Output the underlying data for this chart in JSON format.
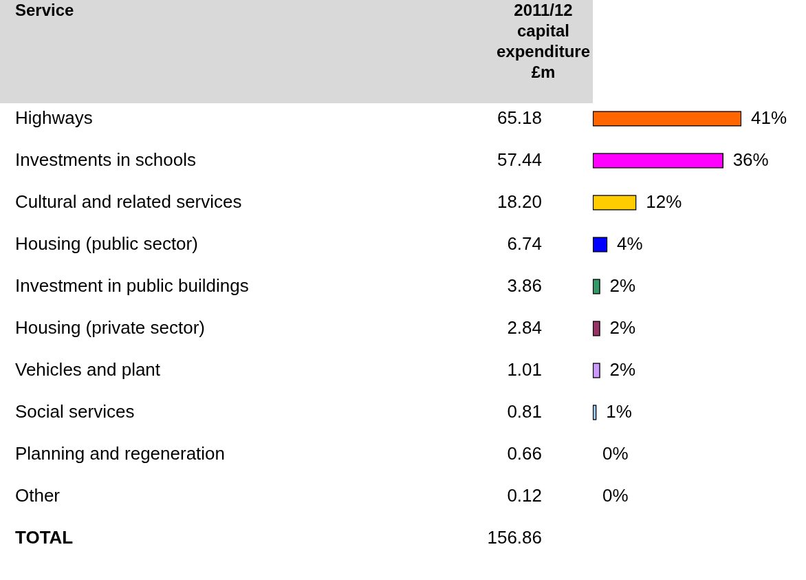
{
  "chart_data": {
    "type": "bar",
    "orientation": "horizontal",
    "ylabel": "Service",
    "categories": [
      "Highways",
      "Investments in schools",
      "Cultural and related services",
      "Housing (public sector)",
      "Investment in public buildings",
      "Housing (private sector)",
      "Vehicles and plant",
      "Social services",
      "Planning and regeneration",
      "Other"
    ],
    "values": [
      41,
      36,
      12,
      4,
      2,
      2,
      2,
      1,
      0,
      0
    ],
    "colors": [
      "#ff6600",
      "#ff00ff",
      "#ffcc00",
      "#0000ff",
      "#339966",
      "#993366",
      "#cc99ff",
      "#99ccff",
      "#ffffff",
      "#ffffff"
    ],
    "value_labels": [
      "41%",
      "36%",
      "12%",
      "4%",
      "2%",
      "2%",
      "2%",
      "1%",
      "0%",
      "0%"
    ],
    "xlim": [
      0,
      41
    ],
    "tick_labels": "y",
    "grid": false,
    "legend": false,
    "annotations": [
      "2011/12 capital expenditure £m",
      "65.18",
      "57.44",
      "18.20",
      "6.74",
      "3.86",
      "2.84",
      "1.01",
      "0.81",
      "0.66",
      "0.12",
      "TOTAL",
      "156.86"
    ]
  }
}
